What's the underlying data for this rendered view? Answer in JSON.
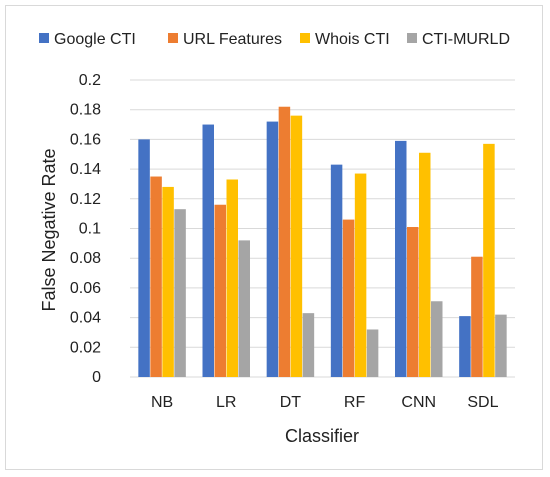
{
  "chart_data": {
    "type": "bar",
    "xlabel": "Classifier",
    "ylabel": "False Negative Rate",
    "categories": [
      "NB",
      "LR",
      "DT",
      "RF",
      "CNN",
      "SDL"
    ],
    "series": [
      {
        "name": "Google CTI",
        "color": "#4472c4",
        "values": [
          0.16,
          0.17,
          0.172,
          0.143,
          0.159,
          0.041
        ]
      },
      {
        "name": "URL Features",
        "color": "#ed7d31",
        "values": [
          0.135,
          0.116,
          0.182,
          0.106,
          0.101,
          0.081
        ]
      },
      {
        "name": "Whois CTI",
        "color": "#ffc000",
        "values": [
          0.128,
          0.133,
          0.176,
          0.137,
          0.151,
          0.157
        ]
      },
      {
        "name": "CTI-MURLD",
        "color": "#a5a5a5",
        "values": [
          0.113,
          0.092,
          0.043,
          0.032,
          0.051,
          0.042
        ]
      }
    ],
    "y_ticks": [
      "0",
      "0.02",
      "0.04",
      "0.06",
      "0.08",
      "0.1",
      "0.12",
      "0.14",
      "0.16",
      "0.18",
      "0.2"
    ],
    "ylim": [
      0,
      0.2
    ],
    "grid": true,
    "legend": "top"
  }
}
